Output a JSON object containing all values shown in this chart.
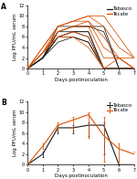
{
  "days": [
    0,
    1,
    2,
    3,
    4,
    5,
    6,
    7
  ],
  "tabasco_individual": [
    [
      0,
      2,
      8,
      8,
      8,
      8,
      0,
      0
    ],
    [
      0,
      2,
      7,
      8,
      8,
      7,
      0,
      0
    ],
    [
      0,
      2,
      7,
      7,
      7,
      0,
      0,
      0
    ],
    [
      0,
      2,
      6,
      7,
      7,
      0,
      0,
      0
    ],
    [
      0,
      2,
      6,
      7,
      6,
      0,
      0,
      0
    ],
    [
      0,
      2,
      6,
      6,
      5,
      0,
      0,
      0
    ],
    [
      0,
      2,
      5,
      6,
      5,
      0,
      0,
      0
    ]
  ],
  "tecate_individual": [
    [
      0,
      4,
      8,
      9,
      10,
      10,
      6,
      2
    ],
    [
      0,
      4,
      8,
      9,
      10,
      8,
      4,
      2
    ],
    [
      0,
      3,
      8,
      9,
      9,
      6,
      2,
      2
    ],
    [
      0,
      3,
      7,
      8,
      9,
      4,
      2,
      0
    ],
    [
      0,
      3,
      7,
      8,
      8,
      2,
      2,
      0
    ],
    [
      0,
      3,
      6,
      7,
      6,
      0,
      2,
      0
    ],
    [
      0,
      3,
      6,
      6,
      4,
      0,
      0,
      0
    ]
  ],
  "tabasco_mean": [
    0,
    2.0,
    7.0,
    7.0,
    7.5,
    7.5,
    0,
    0
  ],
  "tabasco_err_low": [
    0,
    0.5,
    1.0,
    1.0,
    2.0,
    5.5,
    0,
    0
  ],
  "tabasco_err_high": [
    0,
    0.5,
    0.5,
    0.5,
    0.5,
    0.5,
    0,
    0
  ],
  "tecate_mean": [
    0,
    3.5,
    7.5,
    8.5,
    9.5,
    5.5,
    3.0,
    2.0
  ],
  "tecate_err_low": [
    0,
    0.5,
    1.0,
    2.0,
    4.5,
    5.0,
    2.5,
    2.0
  ],
  "tecate_err_high": [
    0,
    0.5,
    0.5,
    0.5,
    0.5,
    3.5,
    1.0,
    0.5
  ],
  "tabasco_color": "#1a1a1a",
  "tecate_color": "#d94f00",
  "xlabel": "Days postinoculation",
  "ylabel": "Log PFU/mL serum",
  "ylim": [
    0,
    12
  ],
  "yticks": [
    0,
    2,
    4,
    6,
    8,
    10,
    12
  ],
  "xlim": [
    0,
    7
  ],
  "xticks": [
    0,
    1,
    2,
    3,
    4,
    5,
    6,
    7
  ],
  "label_tabasco": "Tabasco",
  "label_tecate": "Tecate",
  "panel_A": "A",
  "panel_B": "B",
  "legend_fontsize": 3.8,
  "tick_fontsize": 3.5,
  "label_fontsize": 4.0,
  "panel_label_fontsize": 5.5,
  "linewidth_individual": 0.55,
  "linewidth_mean": 0.8
}
